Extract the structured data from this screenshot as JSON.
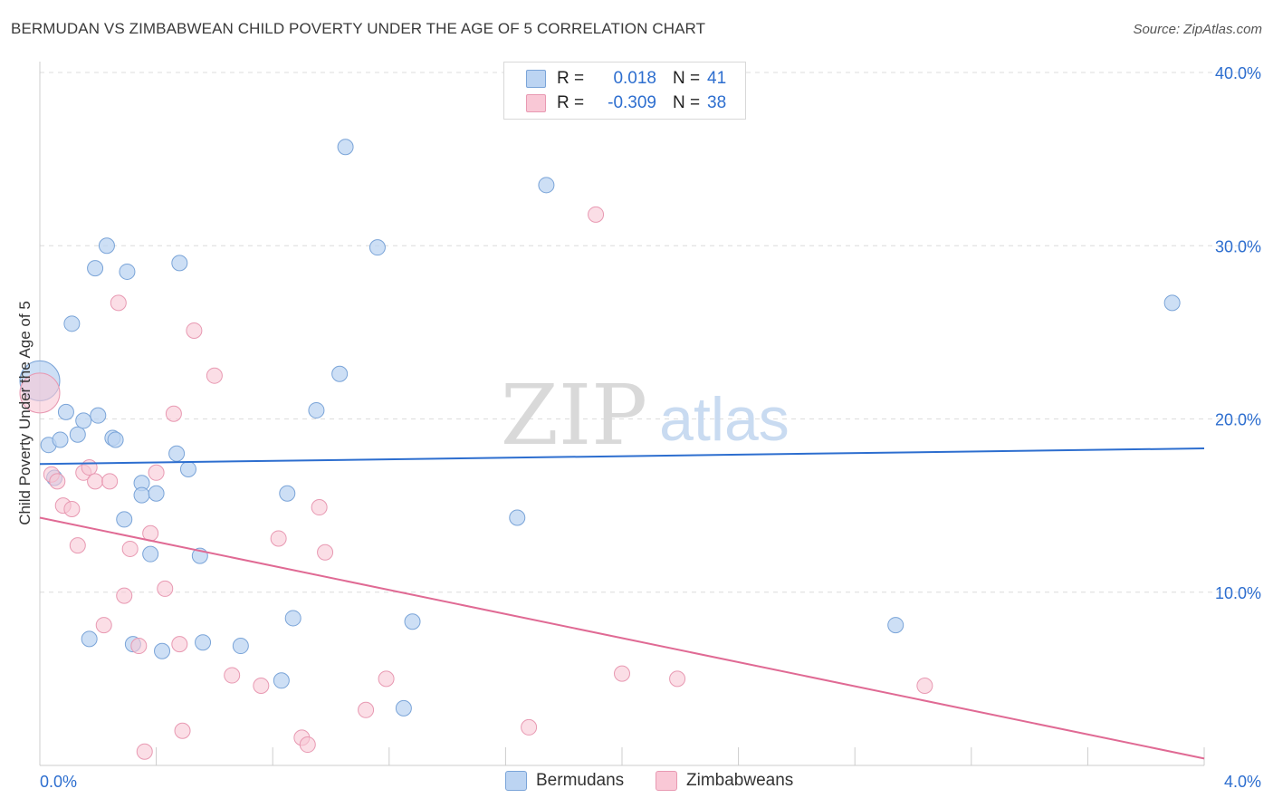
{
  "title": "BERMUDAN VS ZIMBABWEAN CHILD POVERTY UNDER THE AGE OF 5 CORRELATION CHART",
  "source": "Source: ZipAtlas.com",
  "watermark": {
    "zip": "ZIP",
    "atlas": "atlas"
  },
  "colors": {
    "blue_fill": "#bcd4f2",
    "blue_stroke": "#7aa4d8",
    "blue_line": "#2d6ecf",
    "pink_fill": "#f9c8d6",
    "pink_stroke": "#e899b2",
    "pink_line": "#e06a94",
    "tick_text": "#2d6ecf",
    "grid": "#dcdcdc"
  },
  "legend": {
    "rows": [
      {
        "r_label": "R =",
        "r_value": "0.018",
        "n_label": "N =",
        "n_value": "41",
        "color": "#bcd4f2",
        "border": "#7aa4d8"
      },
      {
        "r_label": "R =",
        "r_value": "-0.309",
        "n_label": "N =",
        "n_value": "38",
        "color": "#f9c8d6",
        "border": "#e899b2"
      }
    ]
  },
  "bottom_legend": [
    {
      "label": "Bermudans",
      "color": "#bcd4f2",
      "border": "#7aa4d8"
    },
    {
      "label": "Zimbabweans",
      "color": "#f9c8d6",
      "border": "#e899b2"
    }
  ],
  "chart_data": {
    "type": "scatter",
    "title": "BERMUDAN VS ZIMBABWEAN CHILD POVERTY UNDER THE AGE OF 5 CORRELATION CHART",
    "xlabel": "",
    "ylabel": "Child Poverty Under the Age of 5",
    "xlim": [
      0,
      4
    ],
    "ylim": [
      0,
      40
    ],
    "x_tick_labels": [
      "0.0%",
      "4.0%"
    ],
    "y_ticks": [
      10,
      20,
      30,
      40
    ],
    "y_tick_labels": [
      "10.0%",
      "20.0%",
      "30.0%",
      "40.0%"
    ],
    "series": [
      {
        "name": "Bermudans",
        "trend": {
          "x": [
            0,
            4
          ],
          "y": [
            17.4,
            18.3
          ]
        },
        "points": [
          {
            "x": 0.0,
            "y": 22.2,
            "big": true
          },
          {
            "x": 0.03,
            "y": 18.5
          },
          {
            "x": 0.07,
            "y": 18.8
          },
          {
            "x": 0.09,
            "y": 20.4
          },
          {
            "x": 0.11,
            "y": 25.5
          },
          {
            "x": 0.13,
            "y": 19.1
          },
          {
            "x": 0.15,
            "y": 19.9
          },
          {
            "x": 0.05,
            "y": 16.6
          },
          {
            "x": 0.17,
            "y": 7.3
          },
          {
            "x": 0.19,
            "y": 28.7
          },
          {
            "x": 0.2,
            "y": 20.2
          },
          {
            "x": 0.23,
            "y": 30.0
          },
          {
            "x": 0.25,
            "y": 18.9
          },
          {
            "x": 0.26,
            "y": 18.8
          },
          {
            "x": 0.29,
            "y": 14.2
          },
          {
            "x": 0.3,
            "y": 28.5
          },
          {
            "x": 0.32,
            "y": 7.0
          },
          {
            "x": 0.35,
            "y": 16.3
          },
          {
            "x": 0.35,
            "y": 15.6
          },
          {
            "x": 0.38,
            "y": 12.2
          },
          {
            "x": 0.4,
            "y": 15.7
          },
          {
            "x": 0.42,
            "y": 6.6
          },
          {
            "x": 0.47,
            "y": 18.0
          },
          {
            "x": 0.48,
            "y": 29.0
          },
          {
            "x": 0.51,
            "y": 17.1
          },
          {
            "x": 0.55,
            "y": 12.1
          },
          {
            "x": 0.56,
            "y": 7.1
          },
          {
            "x": 0.69,
            "y": 6.9
          },
          {
            "x": 0.83,
            "y": 4.9
          },
          {
            "x": 0.85,
            "y": 15.7
          },
          {
            "x": 0.87,
            "y": 8.5
          },
          {
            "x": 0.95,
            "y": 20.5
          },
          {
            "x": 1.03,
            "y": 22.6
          },
          {
            "x": 1.05,
            "y": 35.7
          },
          {
            "x": 1.16,
            "y": 29.9
          },
          {
            "x": 1.25,
            "y": 3.3
          },
          {
            "x": 1.28,
            "y": 8.3
          },
          {
            "x": 1.64,
            "y": 14.3
          },
          {
            "x": 1.74,
            "y": 33.5
          },
          {
            "x": 2.94,
            "y": 8.1
          },
          {
            "x": 3.89,
            "y": 26.7
          }
        ]
      },
      {
        "name": "Zimbabweans",
        "trend": {
          "x": [
            0,
            4
          ],
          "y": [
            14.3,
            0.4
          ]
        },
        "points": [
          {
            "x": 0.0,
            "y": 21.5,
            "big": true
          },
          {
            "x": 0.04,
            "y": 16.8
          },
          {
            "x": 0.06,
            "y": 16.4
          },
          {
            "x": 0.08,
            "y": 15.0
          },
          {
            "x": 0.11,
            "y": 14.8
          },
          {
            "x": 0.13,
            "y": 12.7
          },
          {
            "x": 0.15,
            "y": 16.9
          },
          {
            "x": 0.17,
            "y": 17.2
          },
          {
            "x": 0.19,
            "y": 16.4
          },
          {
            "x": 0.22,
            "y": 8.1
          },
          {
            "x": 0.24,
            "y": 16.4
          },
          {
            "x": 0.27,
            "y": 26.7
          },
          {
            "x": 0.29,
            "y": 9.8
          },
          {
            "x": 0.31,
            "y": 12.5
          },
          {
            "x": 0.34,
            "y": 6.9
          },
          {
            "x": 0.36,
            "y": 0.8
          },
          {
            "x": 0.38,
            "y": 13.4
          },
          {
            "x": 0.4,
            "y": 16.9
          },
          {
            "x": 0.43,
            "y": 10.2
          },
          {
            "x": 0.46,
            "y": 20.3
          },
          {
            "x": 0.48,
            "y": 7.0
          },
          {
            "x": 0.49,
            "y": 2.0
          },
          {
            "x": 0.53,
            "y": 25.1
          },
          {
            "x": 0.6,
            "y": 22.5
          },
          {
            "x": 0.66,
            "y": 5.2
          },
          {
            "x": 0.76,
            "y": 4.6
          },
          {
            "x": 0.82,
            "y": 13.1
          },
          {
            "x": 0.9,
            "y": 1.6
          },
          {
            "x": 0.92,
            "y": 1.2
          },
          {
            "x": 0.96,
            "y": 14.9
          },
          {
            "x": 0.98,
            "y": 12.3
          },
          {
            "x": 1.12,
            "y": 3.2
          },
          {
            "x": 1.19,
            "y": 5.0
          },
          {
            "x": 1.68,
            "y": 2.2
          },
          {
            "x": 1.91,
            "y": 31.8
          },
          {
            "x": 2.0,
            "y": 5.3
          },
          {
            "x": 2.19,
            "y": 5.0
          },
          {
            "x": 3.04,
            "y": 4.6
          }
        ]
      }
    ]
  }
}
